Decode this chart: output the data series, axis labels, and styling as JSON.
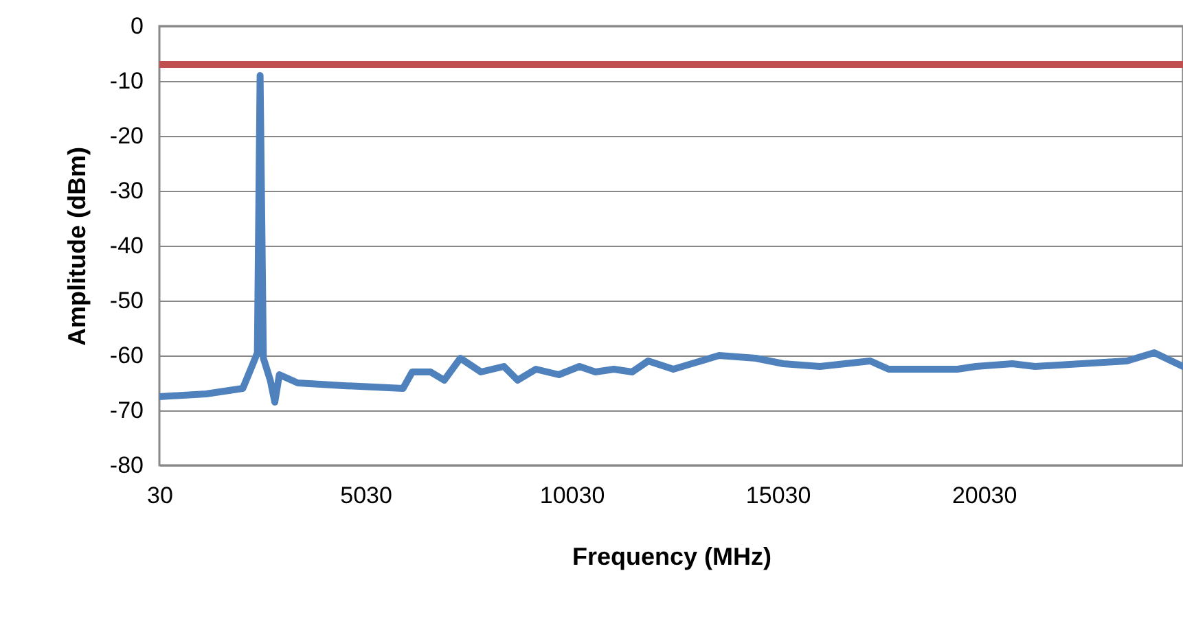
{
  "chart_data": {
    "type": "line",
    "xlabel": "Frequency (MHz)",
    "ylabel": "Amplitude (dBm)",
    "xlim": [
      30,
      24860
    ],
    "xticks": [
      30,
      5030,
      10030,
      15030,
      20030
    ],
    "ylim": [
      -80,
      0
    ],
    "yticks": [
      0,
      -10,
      -20,
      -30,
      -40,
      -50,
      -60,
      -70,
      -80
    ],
    "grid": "y",
    "marker": "none",
    "line_style": "solid",
    "series": [
      {
        "color": "#4f81bd",
        "x": [
          30,
          1163,
          2053,
          2273,
          2407,
          2473,
          2553,
          2720,
          2830,
          2940,
          3387,
          4497,
          5940,
          6163,
          6607,
          6940,
          7330,
          7830,
          8387,
          8720,
          9163,
          9720,
          10220,
          10607,
          11053,
          11497,
          11887,
          12497,
          13607,
          14497,
          15163,
          16053,
          17273,
          17720,
          18497,
          19387,
          19830,
          20720,
          21273,
          22387,
          23497,
          24163,
          24860
        ],
        "values": [
          -67.5,
          -67,
          -66,
          -62,
          -59.5,
          -9,
          -60.5,
          -64.5,
          -68.5,
          -63.5,
          -65,
          -65.5,
          -66,
          -63,
          -63,
          -64.5,
          -60.5,
          -63,
          -62,
          -64.5,
          -62.5,
          -63.5,
          -62,
          -63,
          -62.5,
          -63,
          -61,
          -62.5,
          -60,
          -60.5,
          -61.5,
          -62,
          -61,
          -62.5,
          -62.5,
          -62.5,
          -62,
          -61.5,
          -62,
          -61.5,
          -61,
          -59.5,
          -62
        ]
      }
    ],
    "ref_lines": [
      {
        "axis": "y",
        "value": -7,
        "color": "#c0504d",
        "line_style": "solid"
      }
    ]
  }
}
